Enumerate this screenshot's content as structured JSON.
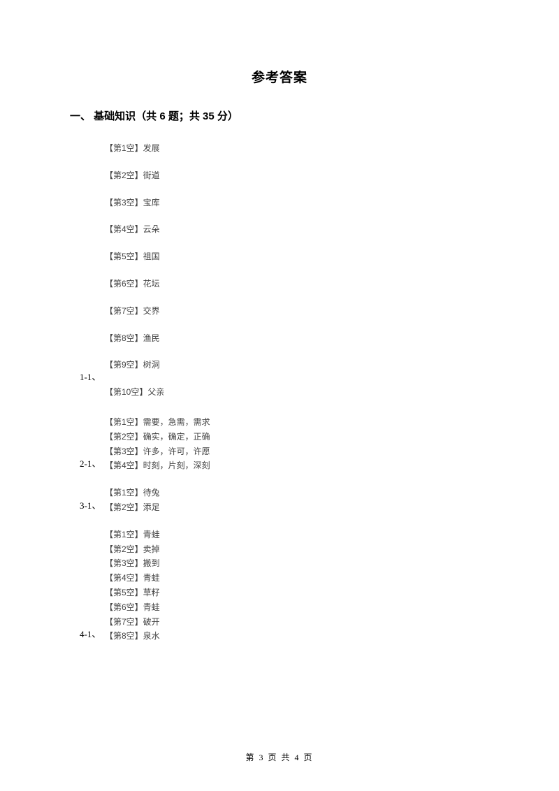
{
  "title": "参考答案",
  "section_header": "一、  基础知识（共 6 题；共 35 分）",
  "groups": [
    {
      "number": "1-1、",
      "tight": false,
      "lines": [
        "【第1空】发展",
        "【第2空】街道",
        "【第3空】宝库",
        "【第4空】云朵",
        "【第5空】祖国",
        "【第6空】花坛",
        "【第7空】交界",
        "【第8空】渔民",
        "【第9空】树洞",
        "【第10空】父亲"
      ]
    },
    {
      "number": "2-1、",
      "tight": true,
      "lines": [
        "【第1空】需要，急需，需求",
        "【第2空】确实，确定，正确",
        "【第3空】许多，许可，许愿",
        "【第4空】时刻，片刻，深刻"
      ]
    },
    {
      "number": "3-1、",
      "tight": true,
      "lines": [
        "【第1空】待兔",
        "【第2空】添足"
      ]
    },
    {
      "number": "4-1、",
      "tight": true,
      "lines": [
        "【第1空】青蛙",
        "【第2空】卖掉",
        "【第3空】搬到",
        "【第4空】青蛙",
        "【第5空】草籽",
        "【第6空】青蛙",
        "【第7空】破开",
        "【第8空】泉水"
      ]
    }
  ],
  "footer": "第 3 页 共 4 页"
}
